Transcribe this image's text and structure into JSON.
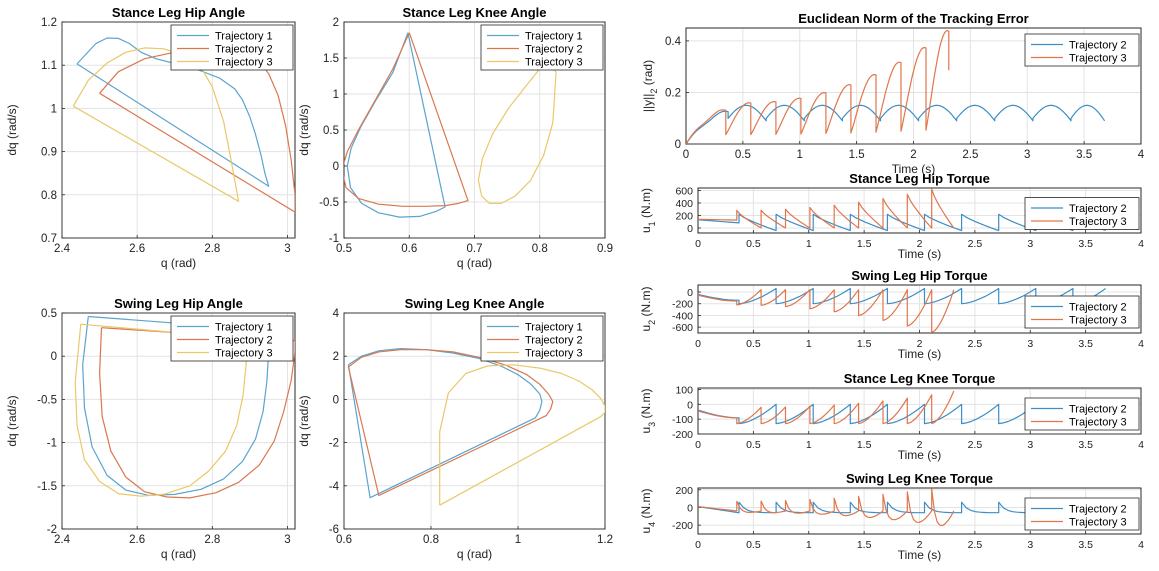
{
  "colors": {
    "trajectory_1": "#5ba4cf",
    "trajectory_2": "#d9784f",
    "trajectory_3": "#e9c86a",
    "rhs_series_1": "#3d8ec6",
    "rhs_series_2": "#e0764a"
  },
  "chart_data": [
    {
      "id": "stance-hip-angle",
      "type": "line",
      "title": "Stance Leg Hip Angle",
      "xlabel": "q (rad)",
      "ylabel": "dq (rad/s)",
      "xlim": [
        2.4,
        3.02
      ],
      "ylim": [
        0.7,
        1.2
      ],
      "xticks": [
        2.4,
        2.6,
        2.8,
        3
      ],
      "xtick_labels": [
        "2.4",
        "2.6",
        "2.8",
        "3"
      ],
      "yticks": [
        0.7,
        0.8,
        0.9,
        1.0,
        1.1,
        1.2
      ],
      "ytick_labels": [
        "0.7",
        "0.8",
        "0.9",
        "1",
        "1.1",
        "1.2"
      ],
      "grid": true,
      "legend": "top-right",
      "closed": true,
      "series": [
        {
          "name": "Trajectory 1",
          "color": "#5ba4cf",
          "x": [
            2.44,
            2.49,
            2.52,
            2.55,
            2.58,
            2.61,
            2.65,
            2.7,
            2.76,
            2.82,
            2.86,
            2.88,
            2.9,
            2.915,
            2.93,
            2.94,
            2.95,
            2.44
          ],
          "y": [
            1.103,
            1.15,
            1.163,
            1.162,
            1.15,
            1.13,
            1.115,
            1.104,
            1.09,
            1.07,
            1.045,
            1.02,
            0.98,
            0.94,
            0.89,
            0.85,
            0.82,
            1.103
          ]
        },
        {
          "name": "Trajectory 2",
          "color": "#d9784f",
          "x": [
            2.5,
            2.55,
            2.62,
            2.7,
            2.77,
            2.83,
            2.88,
            2.92,
            2.95,
            2.975,
            2.995,
            3.01,
            3.02,
            3.02,
            2.5
          ],
          "y": [
            1.035,
            1.085,
            1.115,
            1.13,
            1.138,
            1.14,
            1.135,
            1.115,
            1.08,
            1.03,
            0.96,
            0.88,
            0.8,
            0.76,
            1.035
          ]
        },
        {
          "name": "Trajectory 3",
          "color": "#e9c86a",
          "x": [
            2.43,
            2.47,
            2.52,
            2.57,
            2.62,
            2.67,
            2.72,
            2.77,
            2.8,
            2.83,
            2.85,
            2.87,
            2.43
          ],
          "y": [
            1.005,
            1.065,
            1.105,
            1.13,
            1.14,
            1.138,
            1.125,
            1.095,
            1.05,
            0.97,
            0.88,
            0.785,
            1.005
          ]
        }
      ]
    },
    {
      "id": "stance-knee-angle",
      "type": "line",
      "title": "Stance Leg Knee Angle",
      "xlabel": "q (rad)",
      "ylabel": "dq (rad/s)",
      "xlim": [
        0.5,
        0.9
      ],
      "ylim": [
        -1,
        2
      ],
      "xticks": [
        0.5,
        0.6,
        0.7,
        0.8,
        0.9
      ],
      "xtick_labels": [
        "0.5",
        "0.6",
        "0.7",
        "0.8",
        "0.9"
      ],
      "yticks": [
        -1,
        -0.5,
        0,
        0.5,
        1,
        1.5,
        2
      ],
      "ytick_labels": [
        "-1",
        "-0.5",
        "0",
        "0.5",
        "1",
        "1.5",
        "2"
      ],
      "grid": true,
      "legend": "top-right",
      "closed": true,
      "series": [
        {
          "name": "Trajectory 1",
          "color": "#5ba4cf",
          "x": [
            0.598,
            0.575,
            0.548,
            0.526,
            0.511,
            0.505,
            0.51,
            0.527,
            0.553,
            0.585,
            0.616,
            0.641,
            0.655,
            0.598
          ],
          "y": [
            1.85,
            1.3,
            0.9,
            0.55,
            0.25,
            0,
            -0.3,
            -0.52,
            -0.65,
            -0.71,
            -0.7,
            -0.63,
            -0.57,
            1.85
          ]
        },
        {
          "name": "Trajectory 2",
          "color": "#d9784f",
          "x": [
            0.6,
            0.575,
            0.547,
            0.522,
            0.505,
            0.497,
            0.503,
            0.522,
            0.553,
            0.59,
            0.625,
            0.655,
            0.675,
            0.69,
            0.6
          ],
          "y": [
            1.85,
            1.35,
            0.9,
            0.5,
            0.2,
            -0.05,
            -0.3,
            -0.45,
            -0.53,
            -0.56,
            -0.56,
            -0.55,
            -0.52,
            -0.48,
            1.85
          ]
        },
        {
          "name": "Trajectory 3",
          "color": "#e9c86a",
          "x": [
            0.825,
            0.82,
            0.806,
            0.786,
            0.762,
            0.741,
            0.723,
            0.711,
            0.706,
            0.712,
            0.728,
            0.752,
            0.778,
            0.8,
            0.815,
            0.825
          ],
          "y": [
            1.3,
            0.6,
            0.15,
            -0.2,
            -0.42,
            -0.52,
            -0.52,
            -0.42,
            -0.2,
            0.1,
            0.45,
            0.8,
            1.1,
            1.35,
            1.5,
            1.3
          ]
        }
      ]
    },
    {
      "id": "swing-hip-angle",
      "type": "line",
      "title": "Swing Leg Hip Angle",
      "xlabel": "q (rad)",
      "ylabel": "dq (rad/s)",
      "xlim": [
        2.4,
        3.02
      ],
      "ylim": [
        -2,
        0.5
      ],
      "xticks": [
        2.4,
        2.6,
        2.8,
        3
      ],
      "xtick_labels": [
        "2.4",
        "2.6",
        "2.8",
        "3"
      ],
      "yticks": [
        -2,
        -1.5,
        -1,
        -0.5,
        0,
        0.5
      ],
      "ytick_labels": [
        "-2",
        "-1.5",
        "-1",
        "-0.5",
        "0",
        "0.5"
      ],
      "grid": true,
      "legend": "top-right",
      "closed": true,
      "series": [
        {
          "name": "Trajectory 1",
          "color": "#5ba4cf",
          "x": [
            2.47,
            2.455,
            2.46,
            2.48,
            2.52,
            2.57,
            2.63,
            2.7,
            2.77,
            2.83,
            2.88,
            2.915,
            2.935,
            2.945,
            2.95,
            2.95,
            2.47
          ],
          "y": [
            0.46,
            -0.1,
            -0.6,
            -1.05,
            -1.38,
            -1.55,
            -1.61,
            -1.6,
            -1.54,
            -1.42,
            -1.22,
            -0.96,
            -0.64,
            -0.3,
            0.05,
            0.3,
            0.46
          ]
        },
        {
          "name": "Trajectory 2",
          "color": "#d9784f",
          "x": [
            2.505,
            2.5,
            2.507,
            2.53,
            2.57,
            2.62,
            2.68,
            2.74,
            2.81,
            2.87,
            2.925,
            2.965,
            2.99,
            3.01,
            3.02,
            3.02,
            2.505
          ],
          "y": [
            0.33,
            -0.2,
            -0.7,
            -1.1,
            -1.4,
            -1.57,
            -1.63,
            -1.64,
            -1.58,
            -1.46,
            -1.26,
            -0.98,
            -0.64,
            -0.28,
            0.05,
            0.18,
            0.33
          ]
        },
        {
          "name": "Trajectory 3",
          "color": "#e9c86a",
          "x": [
            2.45,
            2.435,
            2.44,
            2.46,
            2.5,
            2.55,
            2.61,
            2.67,
            2.74,
            2.79,
            2.835,
            2.865,
            2.882,
            2.89,
            2.892,
            2.45
          ],
          "y": [
            0.37,
            -0.3,
            -0.8,
            -1.2,
            -1.45,
            -1.59,
            -1.62,
            -1.6,
            -1.5,
            -1.33,
            -1.1,
            -0.8,
            -0.45,
            -0.1,
            0.2,
            0.37
          ]
        }
      ]
    },
    {
      "id": "swing-knee-angle",
      "type": "line",
      "title": "Swing Leg Knee Angle",
      "xlabel": "q (rad)",
      "ylabel": "dq (rad/s)",
      "xlim": [
        0.6,
        1.2
      ],
      "ylim": [
        -6,
        4
      ],
      "xticks": [
        0.6,
        0.8,
        1,
        1.2
      ],
      "xtick_labels": [
        "0.6",
        "0.8",
        "1",
        "1.2"
      ],
      "yticks": [
        -6,
        -4,
        -2,
        0,
        2,
        4
      ],
      "ytick_labels": [
        "-6",
        "-4",
        "-2",
        "0",
        "2",
        "4"
      ],
      "grid": true,
      "legend": "top-right",
      "closed": true,
      "series": [
        {
          "name": "Trajectory 1",
          "color": "#5ba4cf",
          "x": [
            0.61,
            0.64,
            0.68,
            0.73,
            0.79,
            0.85,
            0.91,
            0.96,
            1.0,
            1.03,
            1.05,
            1.055,
            1.05,
            1.04,
            0.66,
            0.61
          ],
          "y": [
            1.6,
            2.0,
            2.25,
            2.35,
            2.3,
            2.15,
            1.9,
            1.55,
            1.15,
            0.7,
            0.25,
            -0.1,
            -0.5,
            -0.85,
            -4.55,
            1.6
          ]
        },
        {
          "name": "Trajectory 2",
          "color": "#d9784f",
          "x": [
            0.61,
            0.64,
            0.68,
            0.73,
            0.79,
            0.85,
            0.91,
            0.97,
            1.02,
            1.05,
            1.07,
            1.08,
            1.075,
            1.065,
            0.68,
            0.61
          ],
          "y": [
            1.5,
            1.95,
            2.2,
            2.3,
            2.3,
            2.2,
            1.95,
            1.6,
            1.15,
            0.7,
            0.25,
            -0.1,
            -0.45,
            -0.75,
            -4.45,
            1.5
          ]
        },
        {
          "name": "Trajectory 3",
          "color": "#e9c86a",
          "x": [
            0.82,
            0.82,
            0.84,
            0.88,
            0.93,
            0.99,
            1.05,
            1.1,
            1.14,
            1.17,
            1.19,
            1.2,
            1.2,
            1.19,
            0.82
          ],
          "y": [
            -4.9,
            -1.5,
            0.3,
            1.2,
            1.55,
            1.6,
            1.45,
            1.2,
            0.85,
            0.45,
            0.05,
            -0.3,
            -0.6,
            -0.8,
            -4.9
          ]
        }
      ]
    },
    {
      "id": "tracking-error-norm",
      "type": "line",
      "title": "Euclidean Norm of the Tracking Error",
      "xlabel": "Time (s)",
      "ylabel": "||y||_2 (rad)",
      "xlim": [
        0,
        4
      ],
      "ylim": [
        0,
        0.45
      ],
      "xticks": [
        0,
        0.5,
        1,
        1.5,
        2,
        2.5,
        3,
        3.5,
        4
      ],
      "xtick_labels": [
        "0",
        "0.5",
        "1",
        "1.5",
        "2",
        "2.5",
        "3",
        "3.5",
        "4"
      ],
      "yticks": [
        0,
        0.2,
        0.4
      ],
      "ytick_labels": [
        "0",
        "0.2",
        "0.4"
      ],
      "grid": true,
      "legend": "top-right",
      "series": [
        {
          "name": "Trajectory 2",
          "color": "#3d8ec6",
          "pattern": "arch",
          "x_start": 0.0,
          "x_end": 3.68,
          "period": 0.335,
          "base": 0.07,
          "peak": 0.15,
          "first_peak": 0.13,
          "t_first": 0.37
        },
        {
          "name": "Trajectory 3",
          "color": "#e0764a",
          "pattern": "arch-growing",
          "x_start": 0.0,
          "x_end": 2.31,
          "period": 0.22,
          "base": 0.07,
          "peak_start": 0.16,
          "peak_end": 0.44,
          "t_first": 0.35
        }
      ]
    },
    {
      "id": "stance-hip-torque",
      "type": "line",
      "title": "Stance Leg Hip Torque",
      "xlabel": "Time (s)",
      "ylabel": "u_1 (N.m)",
      "xlim": [
        0,
        4
      ],
      "ylim": [
        -80,
        640
      ],
      "xticks": [
        0,
        0.5,
        1,
        1.5,
        2,
        2.5,
        3,
        3.5,
        4
      ],
      "xtick_labels": [
        "0",
        "0.5",
        "1",
        "1.5",
        "2",
        "2.5",
        "3",
        "3.5",
        "4"
      ],
      "yticks": [
        0,
        200,
        400,
        600
      ],
      "ytick_labels": [
        "0",
        "200",
        "400",
        "600"
      ],
      "grid": true,
      "legend": "right",
      "series": [
        {
          "name": "Trajectory 2",
          "color": "#3d8ec6",
          "pattern": "sawtooth-down",
          "x_start": 0.0,
          "x_end": 3.68,
          "period": 0.335,
          "t_first": 0.37,
          "low": -40,
          "high": 220
        },
        {
          "name": "Trajectory 3",
          "color": "#e0764a",
          "pattern": "sawtooth-down-growing",
          "x_start": 0.0,
          "x_end": 2.31,
          "period": 0.22,
          "t_first": 0.35,
          "low": 0,
          "high_start": 280,
          "high_end": 620
        }
      ]
    },
    {
      "id": "swing-hip-torque",
      "type": "line",
      "title": "Swing Leg Hip Torque",
      "xlabel": "Time (s)",
      "ylabel": "u_2 (N.m)",
      "xlim": [
        0,
        4
      ],
      "ylim": [
        -700,
        120
      ],
      "xticks": [
        0,
        0.5,
        1,
        1.5,
        2,
        2.5,
        3,
        3.5,
        4
      ],
      "xtick_labels": [
        "0",
        "0.5",
        "1",
        "1.5",
        "2",
        "2.5",
        "3",
        "3.5",
        "4"
      ],
      "yticks": [
        -600,
        -400,
        -200,
        0
      ],
      "ytick_labels": [
        "-600",
        "-400",
        "-200",
        "0"
      ],
      "grid": true,
      "legend": "right",
      "series": [
        {
          "name": "Trajectory 2",
          "color": "#3d8ec6",
          "pattern": "sawtooth-up",
          "x_start": 0.0,
          "x_end": 3.68,
          "period": 0.335,
          "t_first": 0.37,
          "low": -200,
          "high": 60
        },
        {
          "name": "Trajectory 3",
          "color": "#e0764a",
          "pattern": "sawtooth-up-growing",
          "x_start": 0.0,
          "x_end": 2.31,
          "period": 0.22,
          "t_first": 0.35,
          "high": 40,
          "low_start": -220,
          "low_end": -690
        }
      ]
    },
    {
      "id": "stance-knee-torque",
      "type": "line",
      "title": "Stance Leg Knee Torque",
      "xlabel": "Time (s)",
      "ylabel": "u_3 (N.m)",
      "xlim": [
        0,
        4
      ],
      "ylim": [
        -200,
        110
      ],
      "xticks": [
        0,
        0.5,
        1,
        1.5,
        2,
        2.5,
        3,
        3.5,
        4
      ],
      "xtick_labels": [
        "0",
        "0.5",
        "1",
        "1.5",
        "2",
        "2.5",
        "3",
        "3.5",
        "4"
      ],
      "yticks": [
        -200,
        -100,
        0,
        100
      ],
      "ytick_labels": [
        "-200",
        "-100",
        "0",
        "100"
      ],
      "grid": true,
      "legend": "right",
      "series": [
        {
          "name": "Trajectory 2",
          "color": "#3d8ec6",
          "pattern": "sawtooth-up",
          "x_start": 0.0,
          "x_end": 3.68,
          "period": 0.335,
          "t_first": 0.37,
          "low": -130,
          "high": 0
        },
        {
          "name": "Trajectory 3",
          "color": "#e0764a",
          "pattern": "sawtooth-up-growing",
          "x_start": 0.0,
          "x_end": 2.31,
          "period": 0.22,
          "t_first": 0.35,
          "high_start": -20,
          "high_end": 90,
          "low_start": -130,
          "low_end": -130
        }
      ]
    },
    {
      "id": "swing-knee-torque",
      "type": "line",
      "title": "Swing Leg Knee Torque",
      "xlabel": "Time (s)",
      "ylabel": "u_4 (N.m)",
      "xlim": [
        0,
        4
      ],
      "ylim": [
        -300,
        220
      ],
      "xticks": [
        0,
        0.5,
        1,
        1.5,
        2,
        2.5,
        3,
        3.5,
        4
      ],
      "xtick_labels": [
        "0",
        "0.5",
        "1",
        "1.5",
        "2",
        "2.5",
        "3",
        "3.5",
        "4"
      ],
      "yticks": [
        -200,
        0,
        200
      ],
      "ytick_labels": [
        "-200",
        "0",
        "200"
      ],
      "grid": true,
      "legend": "right",
      "series": [
        {
          "name": "Trajectory 2",
          "color": "#3d8ec6",
          "pattern": "spike-up",
          "x_start": 0.0,
          "x_end": 3.68,
          "period": 0.335,
          "t_first": 0.37,
          "base": -60,
          "peak": 60
        },
        {
          "name": "Trajectory 3",
          "color": "#e0764a",
          "pattern": "spike-growing",
          "x_start": 0.0,
          "x_end": 2.31,
          "period": 0.22,
          "t_first": 0.35,
          "base": -40,
          "peak_start": 70,
          "peak_end": 210,
          "trough_end": -290
        }
      ]
    }
  ]
}
